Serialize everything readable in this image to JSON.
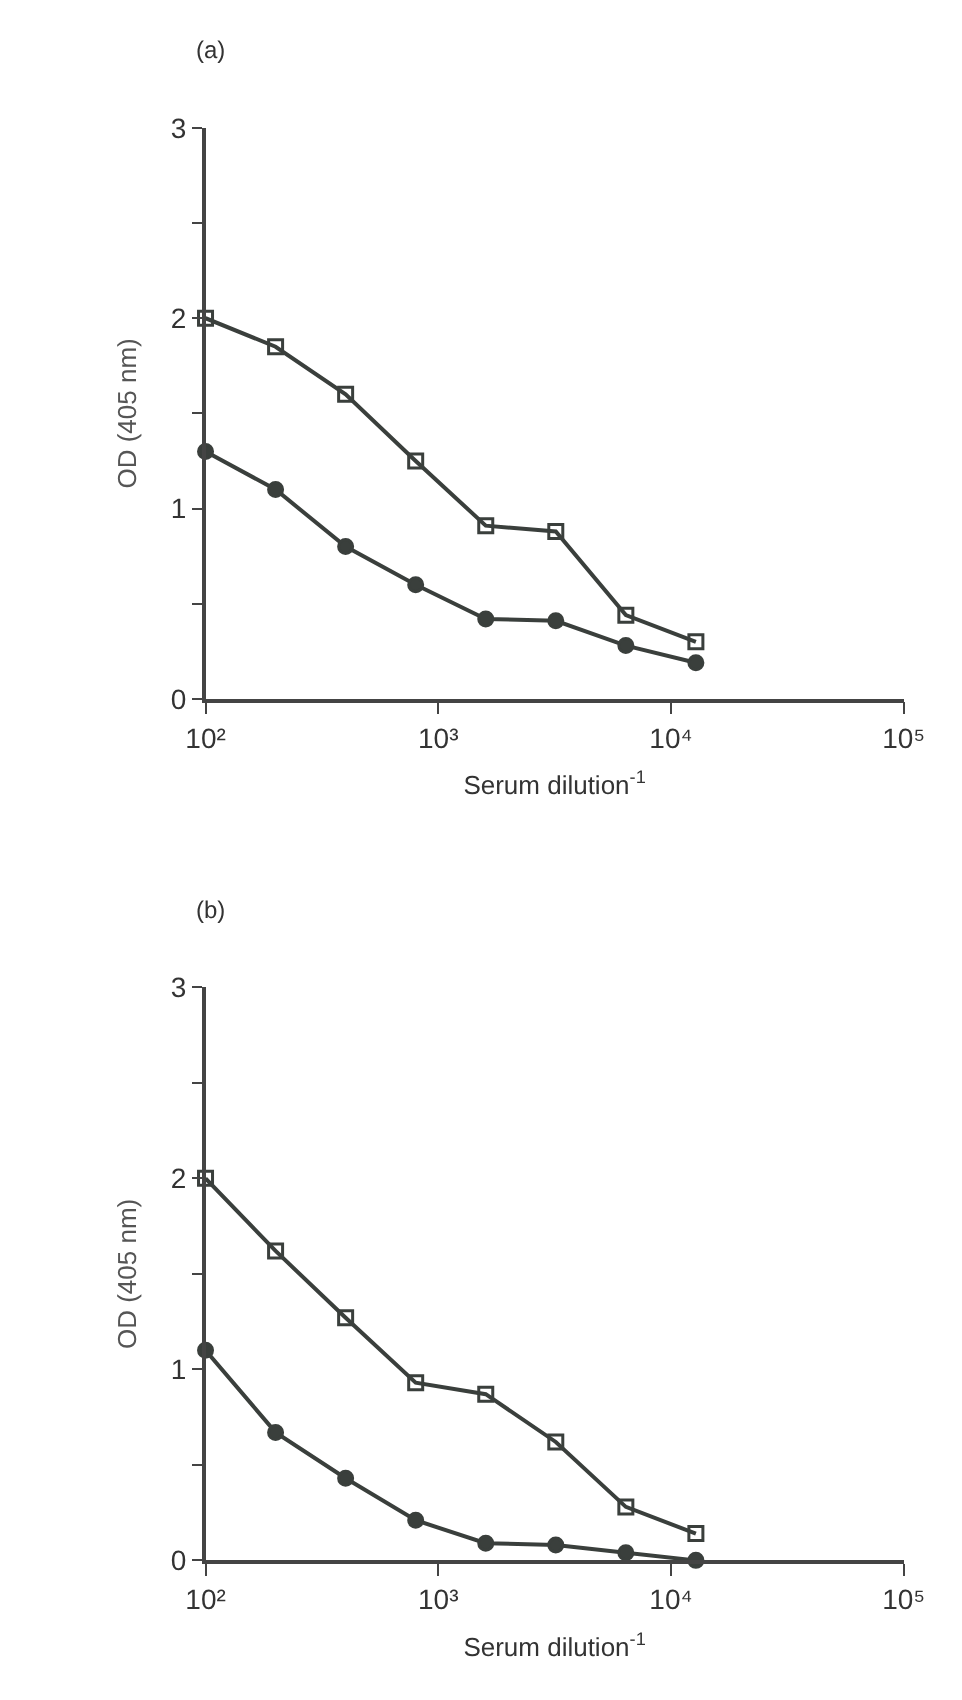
{
  "chart_data": [
    {
      "type": "line",
      "title": "(a)",
      "xlabel": "Serum dilution$^{-1}$",
      "ylabel": "OD (405 nm)",
      "log": "x",
      "line_style": "solid",
      "x": [
        100,
        200,
        400,
        800,
        1600,
        3200,
        6400,
        12800
      ],
      "xlim": [
        100,
        100000
      ],
      "xticks": [
        {
          "value": 100,
          "label": "10²"
        },
        {
          "value": 1000,
          "label": "10³"
        },
        {
          "value": 10000,
          "label": "10⁴"
        },
        {
          "value": 100000,
          "label": "10⁵"
        }
      ],
      "ylim": [
        0,
        3
      ],
      "yticks": [
        0,
        {
          "value": 0.5,
          "label": null
        },
        1,
        {
          "value": 1.5,
          "label": null
        },
        2,
        {
          "value": 2.5,
          "label": null
        },
        3
      ],
      "series": [
        {
          "color": "#3a3f3c",
          "marker": "square",
          "values": [
            2.0,
            1.85,
            1.6,
            1.25,
            0.91,
            0.88,
            0.44,
            0.3
          ]
        },
        {
          "color": "#3a3f3c",
          "marker": "circle",
          "values": [
            1.3,
            1.1,
            0.8,
            0.6,
            0.42,
            0.41,
            0.28,
            0.19
          ]
        }
      ]
    },
    {
      "type": "line",
      "title": "(b)",
      "xlabel": "Serum dilution$^{-1}$",
      "ylabel": "OD (405 nm)",
      "log": "x",
      "line_style": "solid",
      "x": [
        100,
        200,
        400,
        800,
        1600,
        3200,
        6400,
        12800
      ],
      "xlim": [
        100,
        100000
      ],
      "xticks": [
        {
          "value": 100,
          "label": "10²"
        },
        {
          "value": 1000,
          "label": "10³"
        },
        {
          "value": 10000,
          "label": "10⁴"
        },
        {
          "value": 100000,
          "label": "10⁵"
        }
      ],
      "ylim": [
        0,
        3
      ],
      "yticks": [
        0,
        {
          "value": 0.5,
          "label": null
        },
        1,
        {
          "value": 1.5,
          "label": null
        },
        2,
        {
          "value": 2.5,
          "label": null
        },
        3
      ],
      "series": [
        {
          "color": "#3a3f3c",
          "marker": "square",
          "values": [
            2.0,
            1.62,
            1.27,
            0.93,
            0.87,
            0.62,
            0.28,
            0.14
          ]
        },
        {
          "color": "#3a3f3c",
          "marker": "circle",
          "values": [
            1.1,
            0.67,
            0.43,
            0.21,
            0.09,
            0.08,
            0.04,
            0.0
          ]
        }
      ]
    }
  ]
}
